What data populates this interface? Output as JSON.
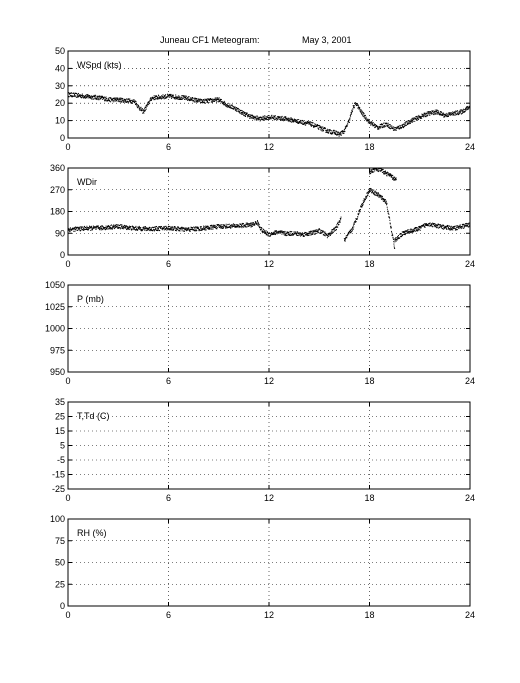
{
  "title_station": "Juneau CF1 Meteogram:",
  "title_date": "May  3, 2001",
  "chart_data": [
    {
      "type": "scatter",
      "label": "WSpd (kts)",
      "xlim": [
        0,
        24
      ],
      "ylim": [
        0,
        50
      ],
      "xticks": [
        0,
        6,
        12,
        18,
        24
      ],
      "yticks": [
        0,
        10,
        20,
        30,
        40,
        50
      ],
      "grid": true,
      "segments": [
        {
          "x": [
            0,
            1,
            2,
            2.5,
            3,
            4,
            4.2,
            4.5,
            5,
            6,
            7,
            8,
            9,
            9.5,
            10,
            10.5,
            11,
            11.5,
            12,
            13,
            14,
            14.5,
            15,
            15.5,
            16,
            16.2,
            16.5,
            16.8,
            17,
            17.2,
            17.5,
            18,
            18.5,
            19,
            19.5,
            20,
            20.5,
            21,
            21.5,
            22,
            22.5,
            23,
            23.5,
            24
          ],
          "y": [
            25,
            24,
            23,
            22,
            22,
            21,
            18,
            15,
            23,
            24,
            23,
            21,
            22,
            19,
            17,
            14,
            12,
            11,
            12,
            11,
            9,
            8,
            6,
            4,
            3,
            2,
            4,
            10,
            17,
            20,
            15,
            9,
            6,
            8,
            5,
            7,
            10,
            12,
            14,
            15,
            13,
            14,
            15,
            18
          ]
        }
      ]
    },
    {
      "type": "scatter",
      "label": "WDir",
      "xlim": [
        0,
        24
      ],
      "ylim": [
        0,
        360
      ],
      "xticks": [
        0,
        6,
        12,
        18,
        24
      ],
      "yticks": [
        0,
        90,
        180,
        270,
        360
      ],
      "grid": true,
      "segments": [
        {
          "x": [
            0,
            1,
            2,
            3,
            4,
            5,
            6,
            7,
            8,
            9,
            10,
            11,
            11.3,
            11.6,
            12,
            12.5,
            13,
            13.5,
            14,
            14.5,
            15,
            15.5,
            16,
            16.3
          ],
          "y": [
            105,
            110,
            112,
            118,
            110,
            108,
            112,
            105,
            110,
            118,
            120,
            125,
            135,
            100,
            85,
            95,
            88,
            90,
            85,
            90,
            100,
            80,
            110,
            150
          ]
        },
        {
          "x": [
            16.5,
            17,
            17.5,
            18,
            18.5,
            19,
            19.5
          ],
          "y": [
            60,
            110,
            200,
            270,
            250,
            220,
            30
          ]
        },
        {
          "x": [
            18,
            18.3,
            18.7,
            19.2,
            19.6
          ],
          "y": [
            340,
            355,
            350,
            330,
            310
          ]
        },
        {
          "x": [
            19.5,
            20,
            20.5,
            21,
            21.5,
            22,
            22.5,
            23,
            23.5,
            24
          ],
          "y": [
            60,
            90,
            100,
            110,
            130,
            120,
            115,
            110,
            118,
            125
          ]
        }
      ]
    },
    {
      "type": "scatter",
      "label": "P (mb)",
      "xlim": [
        0,
        24
      ],
      "ylim": [
        950,
        1050
      ],
      "xticks": [
        0,
        6,
        12,
        18,
        24
      ],
      "yticks": [
        950,
        975,
        1000,
        1025,
        1050
      ],
      "grid": true,
      "segments": []
    },
    {
      "type": "scatter",
      "label": "T,Td (C)",
      "xlim": [
        0,
        24
      ],
      "ylim": [
        -25,
        35
      ],
      "xticks": [
        0,
        6,
        12,
        18,
        24
      ],
      "yticks": [
        -25,
        -15,
        -5,
        5,
        15,
        25,
        35
      ],
      "grid": true,
      "segments": []
    },
    {
      "type": "scatter",
      "label": "RH (%)",
      "xlim": [
        0,
        24
      ],
      "ylim": [
        0,
        100
      ],
      "xticks": [
        0,
        6,
        12,
        18,
        24
      ],
      "yticks": [
        0,
        25,
        50,
        75,
        100
      ],
      "grid": true,
      "segments": []
    }
  ]
}
